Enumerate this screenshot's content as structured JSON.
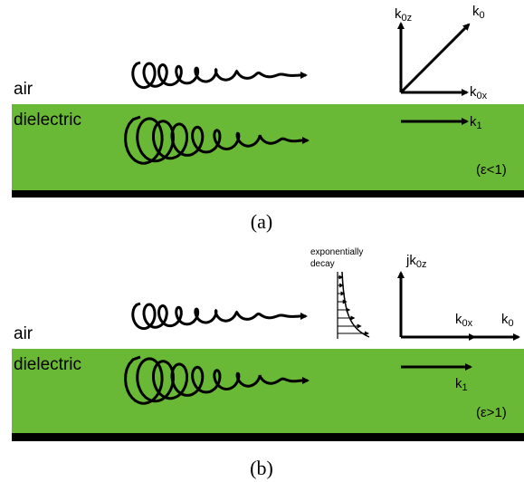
{
  "panel_a": {
    "air": "air",
    "dielectric": "dielectric",
    "condition": "(ε<1)",
    "caption": "(a)",
    "vectors": {
      "k0z": {
        "main": "k",
        "sub": "0z"
      },
      "k0": {
        "main": "k",
        "sub": "0"
      },
      "k0x": {
        "main": "k",
        "sub": "0x"
      },
      "k1": {
        "main": "k",
        "sub": "1"
      }
    }
  },
  "panel_b": {
    "air": "air",
    "dielectric": "dielectric",
    "condition": "(ε>1)",
    "caption": "(b)",
    "decay_label": [
      "exponentially",
      "decay"
    ],
    "vectors": {
      "jk0z": {
        "main": "jk",
        "sub": "0z"
      },
      "k0x": {
        "main": "k",
        "sub": "0x"
      },
      "k0": {
        "main": "k",
        "sub": "0"
      },
      "k1": {
        "main": "k",
        "sub": "1"
      }
    }
  }
}
